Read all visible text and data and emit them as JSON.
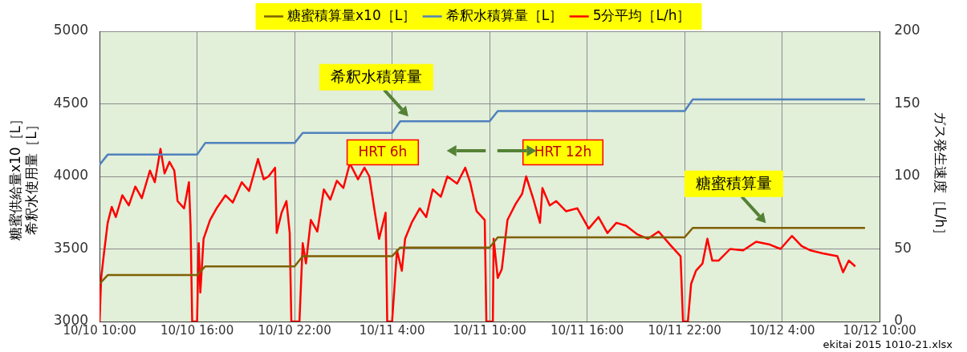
{
  "chart_data": {
    "type": "line",
    "ylabel": "糖蜜供給量x10［L］希釈水使用量［L］",
    "y2label": "ガス発生速度［L/h］",
    "xlim": [
      "--10-10T10:00",
      "--10-12T10:00"
    ],
    "xticks": [
      {
        "value": "--10-10T10:00",
        "label": "10/10 10:00"
      },
      {
        "value": "--10-10T16:00",
        "label": "10/10 16:00"
      },
      {
        "value": "--10-10T22:00",
        "label": "10/10 22:00"
      },
      {
        "value": "--10-11T04:00",
        "label": "10/11 4:00"
      },
      {
        "value": "--10-11T10:00",
        "label": "10/11 10:00"
      },
      {
        "value": "--10-11T16:00",
        "label": "10/11 16:00"
      },
      {
        "value": "--10-11T22:00",
        "label": "10/11 22:00"
      },
      {
        "value": "--10-12T04:00",
        "label": "10/12 4:00"
      },
      {
        "value": "--10-12T10:00",
        "label": "10/12 10:00"
      }
    ],
    "ylim": [
      3000,
      5000
    ],
    "yticks": [
      3000,
      3500,
      4000,
      4500,
      5000
    ],
    "y2lim": [
      0,
      200
    ],
    "y2ticks": [
      0,
      50,
      100,
      150,
      200
    ],
    "grid": true,
    "legend": "top",
    "marker": "none",
    "line_style": "solid",
    "series": [
      {
        "name": "糖蜜積算量x10［L］",
        "color": "#7f6000",
        "x": [
          "--10-10T10:00",
          "--10-10T10:30",
          "--10-10T16:00",
          "--10-10T16:30",
          "--10-10T22:00",
          "--10-10T22:30",
          "--10-11T04:00",
          "--10-11T04:30",
          "--10-11T10:00",
          "--10-11T10:30",
          "--10-11T22:00",
          "--10-11T22:30",
          "--10-12T09:06"
        ],
        "values": [
          3260,
          3320,
          3320,
          3380,
          3380,
          3450,
          3450,
          3510,
          3510,
          3580,
          3580,
          3645,
          3645
        ]
      },
      {
        "name": "希釈水積算量［L］",
        "color": "#4f81bd",
        "x": [
          "--10-10T10:00",
          "--10-10T10:30",
          "--10-10T16:00",
          "--10-10T16:30",
          "--10-10T22:00",
          "--10-10T22:30",
          "--10-11T04:00",
          "--10-11T04:30",
          "--10-11T10:00",
          "--10-11T10:30",
          "--10-11T22:00",
          "--10-11T22:30",
          "--10-12T09:06"
        ],
        "values": [
          4080,
          4150,
          4150,
          4230,
          4230,
          4300,
          4300,
          4380,
          4380,
          4450,
          4450,
          4530,
          4530
        ]
      },
      {
        "name": "5分平均［L/h］",
        "color": "#ff0000",
        "axis": "y2",
        "x": [
          "--10-10T10:00",
          "--10-10T10:06",
          "--10-10T10:15",
          "--10-10T10:30",
          "--10-10T10:45",
          "--10-10T11:00",
          "--10-10T11:24",
          "--10-10T11:48",
          "--10-10T12:12",
          "--10-10T12:36",
          "--10-10T13:06",
          "--10-10T13:24",
          "--10-10T13:45",
          "--10-10T14:00",
          "--10-10T14:18",
          "--10-10T14:36",
          "--10-10T14:48",
          "--10-10T15:12",
          "--10-10T15:30",
          "--10-10T15:36",
          "--10-10T15:42",
          "--10-10T16:00",
          "--10-10T16:06",
          "--10-10T16:12",
          "--10-10T16:24",
          "--10-10T16:48",
          "--10-10T17:12",
          "--10-10T17:45",
          "--10-10T18:12",
          "--10-10T18:45",
          "--10-10T19:12",
          "--10-10T19:45",
          "--10-10T20:06",
          "--10-10T20:24",
          "--10-10T20:48",
          "--10-10T20:54",
          "--10-10T21:12",
          "--10-10T21:30",
          "--10-10T21:42",
          "--10-10T21:48",
          "--10-10T22:18",
          "--10-10T22:30",
          "--10-10T22:42",
          "--10-10T23:00",
          "--10-10T23:24",
          "--10-10T23:48",
          "--10-11T00:12",
          "--10-11T00:36",
          "--10-11T01:00",
          "--10-11T01:24",
          "--10-11T01:54",
          "--10-11T02:18",
          "--10-11T02:36",
          "--10-11T02:54",
          "--10-11T03:12",
          "--10-11T03:36",
          "--10-11T03:42",
          "--10-11T04:00",
          "--10-11T04:18",
          "--10-11T04:36",
          "--10-11T04:48",
          "--10-11T05:12",
          "--10-11T05:42",
          "--10-11T06:06",
          "--10-11T06:30",
          "--10-11T07:00",
          "--10-11T07:24",
          "--10-11T08:00",
          "--10-11T08:30",
          "--10-11T08:48",
          "--10-11T09:12",
          "--10-11T09:42",
          "--10-11T09:48",
          "--10-11T10:12",
          "--10-11T10:15",
          "--10-11T10:30",
          "--10-11T10:45",
          "--10-11T11:06",
          "--10-11T11:36",
          "--10-11T12:00",
          "--10-11T12:15",
          "--10-11T12:42",
          "--10-11T13:06",
          "--10-11T13:15",
          "--10-11T13:42",
          "--10-11T14:06",
          "--10-11T14:42",
          "--10-11T15:24",
          "--10-11T16:06",
          "--10-11T16:42",
          "--10-11T17:15",
          "--10-11T17:48",
          "--10-11T18:24",
          "--10-11T19:06",
          "--10-11T19:45",
          "--10-11T20:24",
          "--10-11T21:06",
          "--10-11T21:45",
          "--10-11T21:54",
          "--10-11T22:12",
          "--10-11T22:24",
          "--10-11T22:42",
          "--10-11T23:06",
          "--10-11T23:24",
          "--10-11T23:42",
          "--10-12T00:06",
          "--10-12T00:48",
          "--10-12T01:36",
          "--10-12T02:24",
          "--10-12T03:15",
          "--10-12T03:54",
          "--10-12T04:36",
          "--10-12T05:12",
          "--10-12T05:45",
          "--10-12T06:30",
          "--10-12T07:24",
          "--10-12T07:45",
          "--10-12T08:06",
          "--10-12T08:30"
        ],
        "values": [
          0,
          30,
          45,
          68,
          79,
          72,
          87,
          80,
          93,
          85,
          104,
          96,
          119,
          102,
          110,
          104,
          83,
          78,
          96,
          66,
          0,
          0,
          54,
          20,
          57,
          70,
          78,
          87,
          82,
          96,
          90,
          112,
          98,
          100,
          106,
          61,
          75,
          83,
          61,
          0,
          0,
          54,
          40,
          70,
          62,
          91,
          84,
          97,
          92,
          109,
          98,
          106,
          100,
          78,
          57,
          75,
          0,
          0,
          49,
          35,
          57,
          68,
          78,
          72,
          91,
          86,
          100,
          95,
          106,
          96,
          76,
          70,
          0,
          0,
          57,
          30,
          36,
          70,
          81,
          88,
          100,
          84,
          68,
          92,
          80,
          83,
          76,
          78,
          64,
          72,
          61,
          68,
          66,
          60,
          57,
          62,
          53,
          45,
          0,
          0,
          26,
          35,
          40,
          57,
          42,
          42,
          50,
          49,
          55,
          53,
          50,
          59,
          52,
          49,
          47,
          45,
          34,
          42,
          38
        ]
      }
    ],
    "annotations": [
      {
        "text": "希釈水積算量",
        "x": "--10-11T05:00",
        "y": 4380
      },
      {
        "text": "糖蜜積算量",
        "x": "--10-12T03:00",
        "y": 3645
      },
      "HRT 6h",
      "HRT 12h",
      "ekitai 2015 1010-21.xlsx"
    ]
  }
}
